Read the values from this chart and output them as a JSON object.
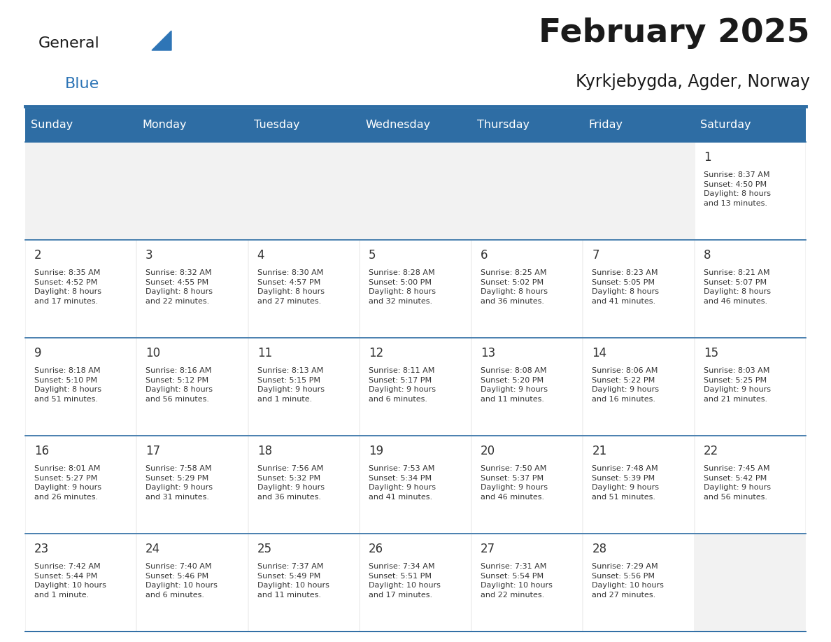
{
  "title": "February 2025",
  "subtitle": "Kyrkjebygda, Agder, Norway",
  "header_bg": "#2E6DA4",
  "header_text_color": "#FFFFFF",
  "day_names": [
    "Sunday",
    "Monday",
    "Tuesday",
    "Wednesday",
    "Thursday",
    "Friday",
    "Saturday"
  ],
  "cell_bg_light": "#F2F2F2",
  "cell_bg_white": "#FFFFFF",
  "separator_color": "#2E6DA4",
  "text_color": "#333333",
  "title_color": "#1a1a1a",
  "blue_color": "#2E75B6",
  "calendar_data": [
    [
      {
        "day": "",
        "info": ""
      },
      {
        "day": "",
        "info": ""
      },
      {
        "day": "",
        "info": ""
      },
      {
        "day": "",
        "info": ""
      },
      {
        "day": "",
        "info": ""
      },
      {
        "day": "",
        "info": ""
      },
      {
        "day": "1",
        "info": "Sunrise: 8:37 AM\nSunset: 4:50 PM\nDaylight: 8 hours\nand 13 minutes."
      }
    ],
    [
      {
        "day": "2",
        "info": "Sunrise: 8:35 AM\nSunset: 4:52 PM\nDaylight: 8 hours\nand 17 minutes."
      },
      {
        "day": "3",
        "info": "Sunrise: 8:32 AM\nSunset: 4:55 PM\nDaylight: 8 hours\nand 22 minutes."
      },
      {
        "day": "4",
        "info": "Sunrise: 8:30 AM\nSunset: 4:57 PM\nDaylight: 8 hours\nand 27 minutes."
      },
      {
        "day": "5",
        "info": "Sunrise: 8:28 AM\nSunset: 5:00 PM\nDaylight: 8 hours\nand 32 minutes."
      },
      {
        "day": "6",
        "info": "Sunrise: 8:25 AM\nSunset: 5:02 PM\nDaylight: 8 hours\nand 36 minutes."
      },
      {
        "day": "7",
        "info": "Sunrise: 8:23 AM\nSunset: 5:05 PM\nDaylight: 8 hours\nand 41 minutes."
      },
      {
        "day": "8",
        "info": "Sunrise: 8:21 AM\nSunset: 5:07 PM\nDaylight: 8 hours\nand 46 minutes."
      }
    ],
    [
      {
        "day": "9",
        "info": "Sunrise: 8:18 AM\nSunset: 5:10 PM\nDaylight: 8 hours\nand 51 minutes."
      },
      {
        "day": "10",
        "info": "Sunrise: 8:16 AM\nSunset: 5:12 PM\nDaylight: 8 hours\nand 56 minutes."
      },
      {
        "day": "11",
        "info": "Sunrise: 8:13 AM\nSunset: 5:15 PM\nDaylight: 9 hours\nand 1 minute."
      },
      {
        "day": "12",
        "info": "Sunrise: 8:11 AM\nSunset: 5:17 PM\nDaylight: 9 hours\nand 6 minutes."
      },
      {
        "day": "13",
        "info": "Sunrise: 8:08 AM\nSunset: 5:20 PM\nDaylight: 9 hours\nand 11 minutes."
      },
      {
        "day": "14",
        "info": "Sunrise: 8:06 AM\nSunset: 5:22 PM\nDaylight: 9 hours\nand 16 minutes."
      },
      {
        "day": "15",
        "info": "Sunrise: 8:03 AM\nSunset: 5:25 PM\nDaylight: 9 hours\nand 21 minutes."
      }
    ],
    [
      {
        "day": "16",
        "info": "Sunrise: 8:01 AM\nSunset: 5:27 PM\nDaylight: 9 hours\nand 26 minutes."
      },
      {
        "day": "17",
        "info": "Sunrise: 7:58 AM\nSunset: 5:29 PM\nDaylight: 9 hours\nand 31 minutes."
      },
      {
        "day": "18",
        "info": "Sunrise: 7:56 AM\nSunset: 5:32 PM\nDaylight: 9 hours\nand 36 minutes."
      },
      {
        "day": "19",
        "info": "Sunrise: 7:53 AM\nSunset: 5:34 PM\nDaylight: 9 hours\nand 41 minutes."
      },
      {
        "day": "20",
        "info": "Sunrise: 7:50 AM\nSunset: 5:37 PM\nDaylight: 9 hours\nand 46 minutes."
      },
      {
        "day": "21",
        "info": "Sunrise: 7:48 AM\nSunset: 5:39 PM\nDaylight: 9 hours\nand 51 minutes."
      },
      {
        "day": "22",
        "info": "Sunrise: 7:45 AM\nSunset: 5:42 PM\nDaylight: 9 hours\nand 56 minutes."
      }
    ],
    [
      {
        "day": "23",
        "info": "Sunrise: 7:42 AM\nSunset: 5:44 PM\nDaylight: 10 hours\nand 1 minute."
      },
      {
        "day": "24",
        "info": "Sunrise: 7:40 AM\nSunset: 5:46 PM\nDaylight: 10 hours\nand 6 minutes."
      },
      {
        "day": "25",
        "info": "Sunrise: 7:37 AM\nSunset: 5:49 PM\nDaylight: 10 hours\nand 11 minutes."
      },
      {
        "day": "26",
        "info": "Sunrise: 7:34 AM\nSunset: 5:51 PM\nDaylight: 10 hours\nand 17 minutes."
      },
      {
        "day": "27",
        "info": "Sunrise: 7:31 AM\nSunset: 5:54 PM\nDaylight: 10 hours\nand 22 minutes."
      },
      {
        "day": "28",
        "info": "Sunrise: 7:29 AM\nSunset: 5:56 PM\nDaylight: 10 hours\nand 27 minutes."
      },
      {
        "day": "",
        "info": ""
      }
    ]
  ]
}
